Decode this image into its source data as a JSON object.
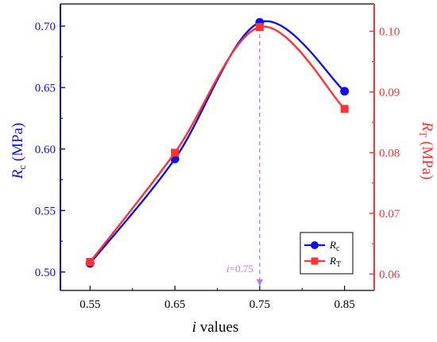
{
  "chart_data": {
    "type": "line",
    "xlabel": {
      "italic": "i",
      "rest": " values"
    },
    "ylabel_left": {
      "italic": "R",
      "sub": "c",
      "rest": " (MPa)"
    },
    "ylabel_right": {
      "italic": "R",
      "sub": "T",
      "rest": " (MPa)"
    },
    "x_ticks": [
      "0.55",
      "0.65",
      "0.75",
      "0.85"
    ],
    "x_tick_values": [
      0.55,
      0.65,
      0.75,
      0.85
    ],
    "xlim": [
      0.515,
      0.885
    ],
    "y_left_ticks": [
      "0.50",
      "0.55",
      "0.60",
      "0.65",
      "0.70"
    ],
    "y_left_tick_values": [
      0.5,
      0.55,
      0.6,
      0.65,
      0.7
    ],
    "ylim_left": [
      0.485,
      0.718
    ],
    "y_right_ticks": [
      "0.06",
      "0.07",
      "0.08",
      "0.09",
      "0.10"
    ],
    "y_right_tick_values": [
      0.06,
      0.07,
      0.08,
      0.09,
      0.1
    ],
    "ylim_right": [
      0.0573,
      0.1045
    ],
    "series": [
      {
        "name": {
          "italic": "R",
          "sub": "c"
        },
        "axis": "left",
        "marker": "circle",
        "color": "#1010e8",
        "x": [
          0.55,
          0.65,
          0.75,
          0.85
        ],
        "y": [
          0.507,
          0.592,
          0.703,
          0.647
        ]
      },
      {
        "name": {
          "italic": "R",
          "sub": "T"
        },
        "axis": "right",
        "marker": "square",
        "color": "#ff3333",
        "x": [
          0.55,
          0.65,
          0.75,
          0.85
        ],
        "y": [
          0.062,
          0.08,
          0.1007,
          0.0872
        ]
      }
    ],
    "annotation": {
      "italic": "i",
      "rest": "=0.75",
      "x": 0.75,
      "color": "#b57ee0"
    },
    "legend_position": "bottom-right",
    "grid": false,
    "colors": {
      "left_axis": "#1010e8",
      "right_axis": "#ff3333",
      "frame": "#000000"
    }
  }
}
